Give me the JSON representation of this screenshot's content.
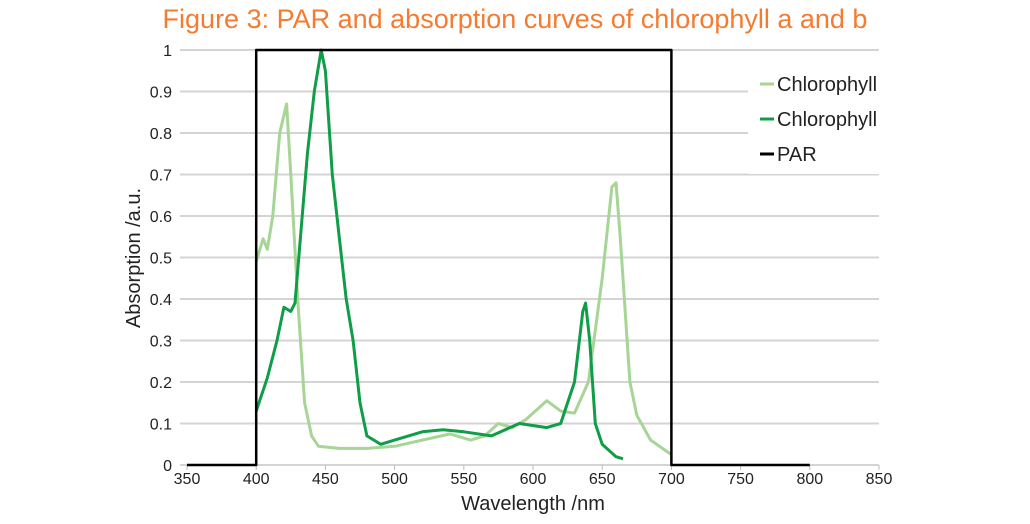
{
  "chart_data": {
    "type": "line",
    "title": "Figure 3: PAR and absorption curves of chlorophyll a and b",
    "xlabel": "Wavelength /nm",
    "ylabel": "Absorption /a.u.",
    "xlim": [
      350,
      850
    ],
    "ylim": [
      0,
      1
    ],
    "xticks": [
      350,
      400,
      450,
      500,
      550,
      600,
      650,
      700,
      750,
      800,
      850
    ],
    "yticks": [
      "0",
      "0.1",
      "0.2",
      "0.3",
      "0.4",
      "0.5",
      "0.6",
      "0.7",
      "0.8",
      "0.9",
      "1"
    ],
    "grid": true,
    "legend_position": "top-right",
    "series": [
      {
        "name": "Chlorophyll",
        "color": "#a6d596",
        "points": [
          [
            400,
            0.49
          ],
          [
            405,
            0.545
          ],
          [
            408,
            0.52
          ],
          [
            412,
            0.6
          ],
          [
            417,
            0.8
          ],
          [
            422,
            0.87
          ],
          [
            425,
            0.7
          ],
          [
            430,
            0.4
          ],
          [
            435,
            0.15
          ],
          [
            440,
            0.07
          ],
          [
            445,
            0.045
          ],
          [
            460,
            0.04
          ],
          [
            480,
            0.04
          ],
          [
            500,
            0.045
          ],
          [
            520,
            0.06
          ],
          [
            540,
            0.075
          ],
          [
            555,
            0.06
          ],
          [
            565,
            0.07
          ],
          [
            575,
            0.1
          ],
          [
            585,
            0.09
          ],
          [
            595,
            0.11
          ],
          [
            610,
            0.155
          ],
          [
            620,
            0.13
          ],
          [
            630,
            0.125
          ],
          [
            640,
            0.2
          ],
          [
            650,
            0.45
          ],
          [
            657,
            0.67
          ],
          [
            660,
            0.68
          ],
          [
            663,
            0.55
          ],
          [
            670,
            0.2
          ],
          [
            675,
            0.12
          ],
          [
            685,
            0.06
          ],
          [
            700,
            0.025
          ]
        ]
      },
      {
        "name": "Chlorophyll",
        "color": "#0f9d48",
        "points": [
          [
            400,
            0.13
          ],
          [
            408,
            0.21
          ],
          [
            415,
            0.3
          ],
          [
            420,
            0.38
          ],
          [
            425,
            0.37
          ],
          [
            428,
            0.39
          ],
          [
            432,
            0.55
          ],
          [
            437,
            0.75
          ],
          [
            442,
            0.9
          ],
          [
            447,
            1.0
          ],
          [
            450,
            0.95
          ],
          [
            455,
            0.7
          ],
          [
            460,
            0.55
          ],
          [
            465,
            0.4
          ],
          [
            470,
            0.3
          ],
          [
            475,
            0.15
          ],
          [
            480,
            0.07
          ],
          [
            490,
            0.05
          ],
          [
            500,
            0.06
          ],
          [
            520,
            0.08
          ],
          [
            535,
            0.085
          ],
          [
            550,
            0.08
          ],
          [
            570,
            0.07
          ],
          [
            590,
            0.1
          ],
          [
            610,
            0.09
          ],
          [
            620,
            0.1
          ],
          [
            630,
            0.2
          ],
          [
            636,
            0.37
          ],
          [
            638,
            0.39
          ],
          [
            641,
            0.3
          ],
          [
            645,
            0.1
          ],
          [
            650,
            0.05
          ],
          [
            660,
            0.02
          ],
          [
            665,
            0.015
          ]
        ]
      },
      {
        "name": "PAR",
        "color": "#000000",
        "points": [
          [
            350,
            0
          ],
          [
            400,
            0
          ],
          [
            400,
            1
          ],
          [
            700,
            1
          ],
          [
            700,
            0
          ],
          [
            800,
            0
          ]
        ]
      }
    ]
  }
}
